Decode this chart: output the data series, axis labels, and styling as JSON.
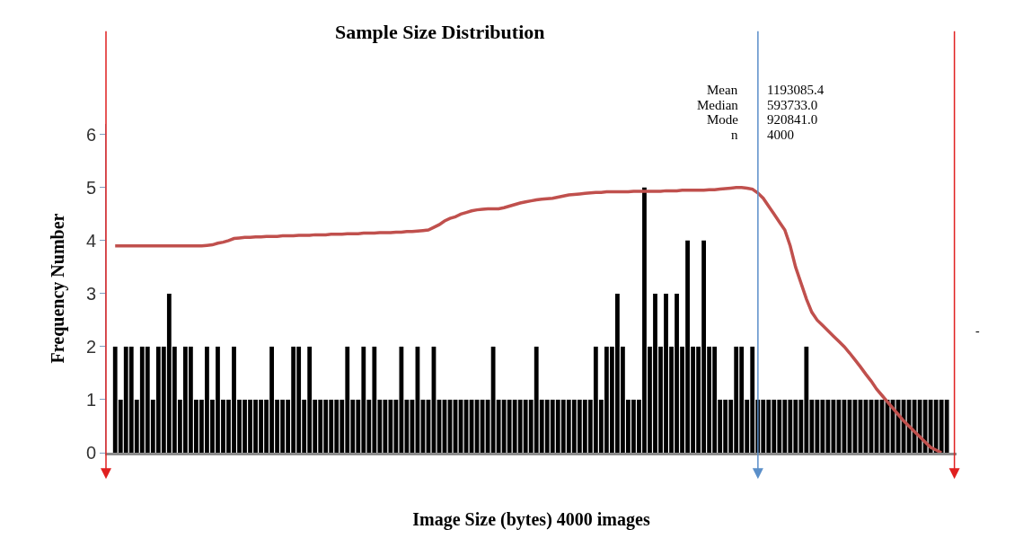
{
  "chart_data": {
    "type": "bar",
    "title": "Sample Size Distribution",
    "xlabel": "Image Size (bytes) 4000 images",
    "ylabel": "Frequency Number",
    "categories": [
      null,
      null,
      null,
      null,
      null,
      null,
      null,
      null,
      null,
      null,
      null,
      null,
      null,
      null,
      null,
      null,
      null,
      null,
      null,
      null,
      null,
      null,
      null,
      null,
      null,
      null,
      null,
      null,
      null,
      null,
      null,
      null,
      null,
      null,
      null,
      null,
      null,
      null,
      null,
      null,
      null,
      null,
      null,
      null,
      null,
      null,
      null,
      null,
      null,
      null,
      null,
      null,
      null,
      null,
      null,
      null,
      null,
      null,
      null,
      null,
      null,
      null,
      null,
      null,
      null,
      null,
      null,
      null,
      null,
      null,
      null,
      null,
      null,
      null,
      null,
      null,
      null,
      null,
      null,
      null,
      null,
      null,
      null,
      null,
      null,
      null,
      null,
      null,
      null,
      null,
      null,
      null,
      null,
      null,
      null,
      null,
      null,
      null,
      null,
      null,
      null,
      null,
      null,
      null,
      null,
      null,
      null,
      null,
      null,
      null,
      null,
      null,
      null,
      null,
      null,
      null,
      null,
      null,
      null,
      null,
      null,
      null,
      null,
      null,
      null,
      null,
      null,
      null,
      null,
      null,
      null,
      null,
      null,
      null,
      null,
      null,
      null,
      null,
      null,
      null,
      null,
      null,
      null,
      null,
      null,
      null,
      null,
      null,
      null,
      null,
      null,
      null,
      null,
      null,
      null
    ],
    "series": [
      {
        "color": "#000000",
        "values": [
          2,
          1,
          2,
          2,
          1,
          2,
          2,
          1,
          2,
          2,
          3,
          2,
          1,
          2,
          2,
          1,
          1,
          2,
          1,
          2,
          1,
          1,
          2,
          1,
          1,
          1,
          1,
          1,
          1,
          2,
          1,
          1,
          1,
          2,
          2,
          1,
          2,
          1,
          1,
          1,
          1,
          1,
          1,
          2,
          1,
          1,
          2,
          1,
          2,
          1,
          1,
          1,
          1,
          2,
          1,
          1,
          2,
          1,
          1,
          2,
          1,
          1,
          1,
          1,
          1,
          1,
          1,
          1,
          1,
          1,
          2,
          1,
          1,
          1,
          1,
          1,
          1,
          1,
          2,
          1,
          1,
          1,
          1,
          1,
          1,
          1,
          1,
          1,
          1,
          2,
          1,
          2,
          2,
          3,
          2,
          1,
          1,
          1,
          5,
          2,
          3,
          2,
          3,
          2,
          3,
          2,
          4,
          2,
          2,
          4,
          2,
          2,
          1,
          1,
          1,
          2,
          2,
          1,
          2,
          1,
          1,
          1,
          1,
          1,
          1,
          1,
          1,
          1,
          2,
          1,
          1,
          1,
          1,
          1,
          1,
          1,
          1,
          1,
          1,
          1,
          1,
          1,
          1,
          1,
          1,
          1,
          1,
          1,
          1,
          1,
          1,
          1,
          1,
          1,
          1
        ]
      },
      {
        "type": "line",
        "color": "#c0504d",
        "values": [
          3.9,
          3.9,
          3.9,
          3.9,
          3.9,
          3.9,
          3.9,
          3.9,
          3.9,
          3.9,
          3.9,
          3.9,
          3.9,
          3.9,
          3.9,
          3.9,
          3.9,
          3.91,
          3.92,
          3.95,
          3.97,
          4.0,
          4.04,
          4.05,
          4.06,
          4.06,
          4.07,
          4.07,
          4.08,
          4.08,
          4.08,
          4.09,
          4.09,
          4.09,
          4.1,
          4.1,
          4.1,
          4.11,
          4.11,
          4.11,
          4.12,
          4.12,
          4.12,
          4.13,
          4.13,
          4.13,
          4.14,
          4.14,
          4.14,
          4.15,
          4.15,
          4.15,
          4.16,
          4.16,
          4.17,
          4.17,
          4.18,
          4.19,
          4.2,
          4.25,
          4.3,
          4.37,
          4.42,
          4.45,
          4.5,
          4.53,
          4.56,
          4.58,
          4.59,
          4.6,
          4.6,
          4.6,
          4.62,
          4.65,
          4.68,
          4.71,
          4.73,
          4.75,
          4.77,
          4.78,
          4.79,
          4.8,
          4.82,
          4.84,
          4.86,
          4.87,
          4.88,
          4.89,
          4.9,
          4.91,
          4.91,
          4.92,
          4.92,
          4.92,
          4.92,
          4.92,
          4.93,
          4.93,
          4.93,
          4.93,
          4.93,
          4.93,
          4.94,
          4.94,
          4.94,
          4.95,
          4.95,
          4.95,
          4.95,
          4.95,
          4.96,
          4.96,
          4.97,
          4.98,
          4.99,
          5.0,
          5.0,
          4.99,
          4.97,
          4.9,
          4.8,
          4.65,
          4.5,
          4.35,
          4.2,
          3.9,
          3.5,
          3.2,
          2.9,
          2.65,
          2.5,
          2.4,
          2.3,
          2.2,
          2.1,
          2.0,
          1.88,
          1.75,
          1.62,
          1.48,
          1.35,
          1.2,
          1.08,
          0.96,
          0.84,
          0.72,
          0.6,
          0.5,
          0.4,
          0.3,
          0.2,
          0.1,
          0.05,
          0,
          null
        ]
      }
    ],
    "ylim": [
      0,
      6.2
    ],
    "yticks": [
      0,
      1,
      2,
      3,
      4,
      5,
      6
    ],
    "tick_labels": "y",
    "annotations": [
      "Mean 1193085.4",
      "Median 593733.0",
      "Mode 920841.0",
      "n 4000",
      "-"
    ]
  }
}
